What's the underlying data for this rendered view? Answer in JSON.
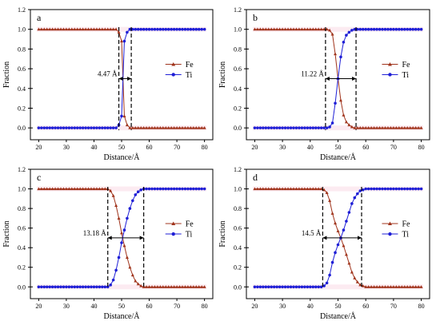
{
  "colors": {
    "fe": "#a0341c",
    "ti": "#1f1fd6",
    "band": "#f7c6d6",
    "axis": "#000000",
    "marker_line": "#000000"
  },
  "chart_data": [
    {
      "panel": "a",
      "type": "line",
      "xlabel": "Distance/Å",
      "ylabel": "Fraction",
      "xlim": [
        17,
        83
      ],
      "ylim": [
        -0.12,
        1.2
      ],
      "xticks": [
        20,
        30,
        40,
        50,
        60,
        70,
        80
      ],
      "yticks": [
        0.0,
        0.2,
        0.4,
        0.6,
        0.8,
        1.0,
        1.2
      ],
      "legend_position": "right",
      "series": [
        {
          "name": "Fe",
          "marker": "triangle",
          "x": [
            20,
            21,
            22,
            23,
            24,
            25,
            26,
            27,
            28,
            29,
            30,
            31,
            32,
            33,
            34,
            35,
            36,
            37,
            38,
            39,
            40,
            41,
            42,
            43,
            44,
            45,
            46,
            47,
            48,
            49,
            50,
            51,
            52,
            53,
            54,
            55,
            56,
            57,
            58,
            59,
            60,
            61,
            62,
            63,
            64,
            65,
            66,
            67,
            68,
            69,
            70,
            71,
            72,
            73,
            74,
            75,
            76,
            77,
            78,
            79,
            80
          ],
          "values": [
            1,
            1,
            1,
            1,
            1,
            1,
            1,
            1,
            1,
            1,
            1,
            1,
            1,
            1,
            1,
            1,
            1,
            1,
            1,
            1,
            1,
            1,
            1,
            1,
            1,
            1,
            1,
            1,
            1,
            0.97,
            0.88,
            0.12,
            0.03,
            0,
            0,
            0,
            0,
            0,
            0,
            0,
            0,
            0,
            0,
            0,
            0,
            0,
            0,
            0,
            0,
            0,
            0,
            0,
            0,
            0,
            0,
            0,
            0,
            0,
            0,
            0,
            0
          ]
        },
        {
          "name": "Ti",
          "marker": "circle",
          "x": [
            20,
            21,
            22,
            23,
            24,
            25,
            26,
            27,
            28,
            29,
            30,
            31,
            32,
            33,
            34,
            35,
            36,
            37,
            38,
            39,
            40,
            41,
            42,
            43,
            44,
            45,
            46,
            47,
            48,
            49,
            50,
            51,
            52,
            53,
            54,
            55,
            56,
            57,
            58,
            59,
            60,
            61,
            62,
            63,
            64,
            65,
            66,
            67,
            68,
            69,
            70,
            71,
            72,
            73,
            74,
            75,
            76,
            77,
            78,
            79,
            80
          ],
          "values": [
            0,
            0,
            0,
            0,
            0,
            0,
            0,
            0,
            0,
            0,
            0,
            0,
            0,
            0,
            0,
            0,
            0,
            0,
            0,
            0,
            0,
            0,
            0,
            0,
            0,
            0,
            0,
            0,
            0,
            0.03,
            0.12,
            0.88,
            0.97,
            1,
            1,
            1,
            1,
            1,
            1,
            1,
            1,
            1,
            1,
            1,
            1,
            1,
            1,
            1,
            1,
            1,
            1,
            1,
            1,
            1,
            1,
            1,
            1,
            1,
            1,
            1,
            1
          ]
        }
      ],
      "dashed_lines_x": [
        49.0,
        53.5
      ],
      "arrow_y": 0.5,
      "annotation": "4.47 Å"
    },
    {
      "panel": "b",
      "type": "line",
      "xlabel": "Distance/Å",
      "ylabel": "Fraction",
      "xlim": [
        17,
        83
      ],
      "ylim": [
        -0.12,
        1.2
      ],
      "xticks": [
        20,
        30,
        40,
        50,
        60,
        70,
        80
      ],
      "yticks": [
        0.0,
        0.2,
        0.4,
        0.6,
        0.8,
        1.0,
        1.2
      ],
      "legend_position": "right",
      "series": [
        {
          "name": "Fe",
          "marker": "triangle",
          "x": [
            20,
            21,
            22,
            23,
            24,
            25,
            26,
            27,
            28,
            29,
            30,
            31,
            32,
            33,
            34,
            35,
            36,
            37,
            38,
            39,
            40,
            41,
            42,
            43,
            44,
            45,
            46,
            47,
            48,
            49,
            50,
            51,
            52,
            53,
            54,
            55,
            56,
            57,
            58,
            59,
            60,
            61,
            62,
            63,
            64,
            65,
            66,
            67,
            68,
            69,
            70,
            71,
            72,
            73,
            74,
            75,
            76,
            77,
            78,
            79,
            80
          ],
          "values": [
            1,
            1,
            1,
            1,
            1,
            1,
            1,
            1,
            1,
            1,
            1,
            1,
            1,
            1,
            1,
            1,
            1,
            1,
            1,
            1,
            1,
            1,
            1,
            1,
            1,
            1,
            1,
            0.99,
            0.95,
            0.75,
            0.5,
            0.28,
            0.13,
            0.06,
            0.03,
            0.01,
            0,
            0,
            0,
            0,
            0,
            0,
            0,
            0,
            0,
            0,
            0,
            0,
            0,
            0,
            0,
            0,
            0,
            0,
            0,
            0,
            0,
            0,
            0,
            0,
            0
          ]
        },
        {
          "name": "Ti",
          "marker": "circle",
          "x": [
            20,
            21,
            22,
            23,
            24,
            25,
            26,
            27,
            28,
            29,
            30,
            31,
            32,
            33,
            34,
            35,
            36,
            37,
            38,
            39,
            40,
            41,
            42,
            43,
            44,
            45,
            46,
            47,
            48,
            49,
            50,
            51,
            52,
            53,
            54,
            55,
            56,
            57,
            58,
            59,
            60,
            61,
            62,
            63,
            64,
            65,
            66,
            67,
            68,
            69,
            70,
            71,
            72,
            73,
            74,
            75,
            76,
            77,
            78,
            79,
            80
          ],
          "values": [
            0,
            0,
            0,
            0,
            0,
            0,
            0,
            0,
            0,
            0,
            0,
            0,
            0,
            0,
            0,
            0,
            0,
            0,
            0,
            0,
            0,
            0,
            0,
            0,
            0,
            0,
            0,
            0.01,
            0.05,
            0.25,
            0.5,
            0.72,
            0.87,
            0.94,
            0.97,
            0.99,
            1,
            1,
            1,
            1,
            1,
            1,
            1,
            1,
            1,
            1,
            1,
            1,
            1,
            1,
            1,
            1,
            1,
            1,
            1,
            1,
            1,
            1,
            1,
            1,
            1
          ]
        }
      ],
      "dashed_lines_x": [
        45.5,
        56.5
      ],
      "arrow_y": 0.5,
      "annotation": "11.22 Å"
    },
    {
      "panel": "c",
      "type": "line",
      "xlabel": "Distance/Å",
      "ylabel": "Fraction",
      "xlim": [
        17,
        83
      ],
      "ylim": [
        -0.12,
        1.2
      ],
      "xticks": [
        20,
        30,
        40,
        50,
        60,
        70,
        80
      ],
      "yticks": [
        0.0,
        0.2,
        0.4,
        0.6,
        0.8,
        1.0,
        1.2
      ],
      "legend_position": "right",
      "series": [
        {
          "name": "Fe",
          "marker": "triangle",
          "x": [
            20,
            21,
            22,
            23,
            24,
            25,
            26,
            27,
            28,
            29,
            30,
            31,
            32,
            33,
            34,
            35,
            36,
            37,
            38,
            39,
            40,
            41,
            42,
            43,
            44,
            45,
            46,
            47,
            48,
            49,
            50,
            51,
            52,
            53,
            54,
            55,
            56,
            57,
            58,
            59,
            60,
            61,
            62,
            63,
            64,
            65,
            66,
            67,
            68,
            69,
            70,
            71,
            72,
            73,
            74,
            75,
            76,
            77,
            78,
            79,
            80
          ],
          "values": [
            1,
            1,
            1,
            1,
            1,
            1,
            1,
            1,
            1,
            1,
            1,
            1,
            1,
            1,
            1,
            1,
            1,
            1,
            1,
            1,
            1,
            1,
            1,
            1,
            1,
            1,
            0.98,
            0.93,
            0.83,
            0.7,
            0.55,
            0.42,
            0.3,
            0.2,
            0.12,
            0.06,
            0.03,
            0.01,
            0,
            0,
            0,
            0,
            0,
            0,
            0,
            0,
            0,
            0,
            0,
            0,
            0,
            0,
            0,
            0,
            0,
            0,
            0,
            0,
            0,
            0,
            0
          ]
        },
        {
          "name": "Ti",
          "marker": "circle",
          "x": [
            20,
            21,
            22,
            23,
            24,
            25,
            26,
            27,
            28,
            29,
            30,
            31,
            32,
            33,
            34,
            35,
            36,
            37,
            38,
            39,
            40,
            41,
            42,
            43,
            44,
            45,
            46,
            47,
            48,
            49,
            50,
            51,
            52,
            53,
            54,
            55,
            56,
            57,
            58,
            59,
            60,
            61,
            62,
            63,
            64,
            65,
            66,
            67,
            68,
            69,
            70,
            71,
            72,
            73,
            74,
            75,
            76,
            77,
            78,
            79,
            80
          ],
          "values": [
            0,
            0,
            0,
            0,
            0,
            0,
            0,
            0,
            0,
            0,
            0,
            0,
            0,
            0,
            0,
            0,
            0,
            0,
            0,
            0,
            0,
            0,
            0,
            0,
            0,
            0,
            0.02,
            0.07,
            0.17,
            0.3,
            0.45,
            0.58,
            0.7,
            0.8,
            0.88,
            0.94,
            0.97,
            0.99,
            1,
            1,
            1,
            1,
            1,
            1,
            1,
            1,
            1,
            1,
            1,
            1,
            1,
            1,
            1,
            1,
            1,
            1,
            1,
            1,
            1,
            1,
            1
          ]
        }
      ],
      "dashed_lines_x": [
        45.0,
        58.0
      ],
      "arrow_y": 0.5,
      "annotation": "13.18 Å"
    },
    {
      "panel": "d",
      "type": "line",
      "xlabel": "Distance/Å",
      "ylabel": "Fraction",
      "xlim": [
        17,
        83
      ],
      "ylim": [
        -0.12,
        1.2
      ],
      "xticks": [
        20,
        30,
        40,
        50,
        60,
        70,
        80
      ],
      "yticks": [
        0.0,
        0.2,
        0.4,
        0.6,
        0.8,
        1.0,
        1.2
      ],
      "legend_position": "right",
      "series": [
        {
          "name": "Fe",
          "marker": "triangle",
          "x": [
            20,
            21,
            22,
            23,
            24,
            25,
            26,
            27,
            28,
            29,
            30,
            31,
            32,
            33,
            34,
            35,
            36,
            37,
            38,
            39,
            40,
            41,
            42,
            43,
            44,
            45,
            46,
            47,
            48,
            49,
            50,
            51,
            52,
            53,
            54,
            55,
            56,
            57,
            58,
            59,
            60,
            61,
            62,
            63,
            64,
            65,
            66,
            67,
            68,
            69,
            70,
            71,
            72,
            73,
            74,
            75,
            76,
            77,
            78,
            79,
            80
          ],
          "values": [
            1,
            1,
            1,
            1,
            1,
            1,
            1,
            1,
            1,
            1,
            1,
            1,
            1,
            1,
            1,
            1,
            1,
            1,
            1,
            1,
            1,
            1,
            1,
            1,
            1,
            0.99,
            0.96,
            0.88,
            0.75,
            0.65,
            0.57,
            0.5,
            0.42,
            0.33,
            0.24,
            0.15,
            0.09,
            0.05,
            0.02,
            0.01,
            0,
            0,
            0,
            0,
            0,
            0,
            0,
            0,
            0,
            0,
            0,
            0,
            0,
            0,
            0,
            0,
            0,
            0,
            0,
            0,
            0
          ]
        },
        {
          "name": "Ti",
          "marker": "circle",
          "x": [
            20,
            21,
            22,
            23,
            24,
            25,
            26,
            27,
            28,
            29,
            30,
            31,
            32,
            33,
            34,
            35,
            36,
            37,
            38,
            39,
            40,
            41,
            42,
            43,
            44,
            45,
            46,
            47,
            48,
            49,
            50,
            51,
            52,
            53,
            54,
            55,
            56,
            57,
            58,
            59,
            60,
            61,
            62,
            63,
            64,
            65,
            66,
            67,
            68,
            69,
            70,
            71,
            72,
            73,
            74,
            75,
            76,
            77,
            78,
            79,
            80
          ],
          "values": [
            0,
            0,
            0,
            0,
            0,
            0,
            0,
            0,
            0,
            0,
            0,
            0,
            0,
            0,
            0,
            0,
            0,
            0,
            0,
            0,
            0,
            0,
            0,
            0,
            0,
            0.01,
            0.04,
            0.12,
            0.25,
            0.35,
            0.43,
            0.5,
            0.58,
            0.67,
            0.76,
            0.85,
            0.91,
            0.95,
            0.98,
            0.99,
            1,
            1,
            1,
            1,
            1,
            1,
            1,
            1,
            1,
            1,
            1,
            1,
            1,
            1,
            1,
            1,
            1,
            1,
            1,
            1,
            1
          ]
        }
      ],
      "dashed_lines_x": [
        44.5,
        58.5
      ],
      "arrow_y": 0.5,
      "annotation": "14.5 Å"
    }
  ]
}
